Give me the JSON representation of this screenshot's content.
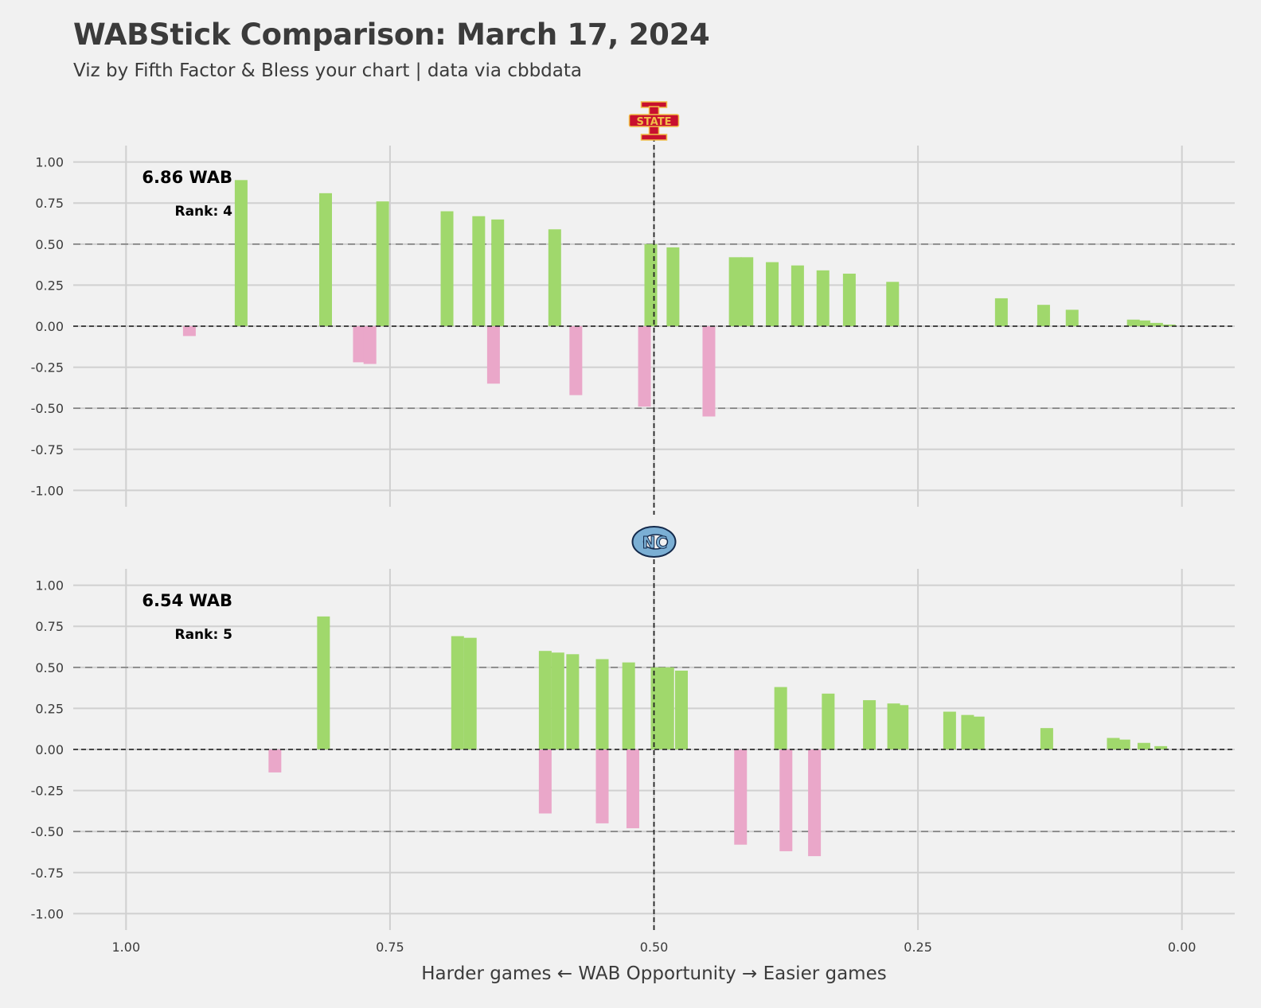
{
  "title": "WABStick Comparison: March 17, 2024",
  "subtitle": "Viz by Fifth Factor & Bless your chart | data via cbbdata",
  "colors": {
    "positive": "#a0d86c",
    "negative": "#eaa7c9",
    "background": "#f1f1f1",
    "grid": "#d0d0d0"
  },
  "chart_data": [
    {
      "type": "bar",
      "team_logo": "iowa-state-logo",
      "logo_text": "STATE",
      "wab_label": "6.86 WAB",
      "rank_label": "Rank: 4",
      "xlabel": "Harder games ← WAB Opportunity → Easier games",
      "xlim": [
        1.05,
        -0.05
      ],
      "ylim": [
        -1.1,
        1.1
      ],
      "x_ticks": [
        1.0,
        0.75,
        0.5,
        0.25,
        0.0
      ],
      "x_tick_labels": [
        "1.00",
        "0.75",
        "0.50",
        "0.25",
        "0.00"
      ],
      "y_ticks": [
        1.0,
        0.75,
        0.5,
        0.25,
        0.0,
        -0.25,
        -0.5,
        -0.75,
        -1.0
      ],
      "y_tick_labels": [
        "1.00",
        "0.75",
        "0.50",
        "0.25",
        "0.00",
        "-0.25",
        "-0.50",
        "-0.75",
        "-1.00"
      ],
      "reference_lines_y": [
        0.5,
        -0.5
      ],
      "reference_line_x": 0.5,
      "points": [
        {
          "x": 0.94,
          "y": -0.06
        },
        {
          "x": 0.891,
          "y": 0.89
        },
        {
          "x": 0.811,
          "y": 0.81
        },
        {
          "x": 0.779,
          "y": -0.22
        },
        {
          "x": 0.769,
          "y": -0.23
        },
        {
          "x": 0.757,
          "y": 0.76
        },
        {
          "x": 0.696,
          "y": 0.7
        },
        {
          "x": 0.666,
          "y": 0.67
        },
        {
          "x": 0.652,
          "y": -0.35
        },
        {
          "x": 0.648,
          "y": 0.65
        },
        {
          "x": 0.594,
          "y": 0.59
        },
        {
          "x": 0.574,
          "y": -0.42
        },
        {
          "x": 0.509,
          "y": -0.49
        },
        {
          "x": 0.503,
          "y": 0.5
        },
        {
          "x": 0.482,
          "y": 0.48
        },
        {
          "x": 0.448,
          "y": -0.55
        },
        {
          "x": 0.423,
          "y": 0.42
        },
        {
          "x": 0.412,
          "y": 0.42
        },
        {
          "x": 0.388,
          "y": 0.39
        },
        {
          "x": 0.364,
          "y": 0.37
        },
        {
          "x": 0.34,
          "y": 0.34
        },
        {
          "x": 0.315,
          "y": 0.32
        },
        {
          "x": 0.274,
          "y": 0.27
        },
        {
          "x": 0.171,
          "y": 0.17
        },
        {
          "x": 0.131,
          "y": 0.13
        },
        {
          "x": 0.104,
          "y": 0.1
        },
        {
          "x": 0.046,
          "y": 0.04
        },
        {
          "x": 0.036,
          "y": 0.035
        },
        {
          "x": 0.024,
          "y": 0.02
        },
        {
          "x": 0.012,
          "y": 0.01
        }
      ]
    },
    {
      "type": "bar",
      "team_logo": "north-carolina-logo",
      "logo_text": "NC",
      "wab_label": "6.54 WAB",
      "rank_label": "Rank: 5",
      "xlabel": "Harder games ← WAB Opportunity → Easier games",
      "xlim": [
        1.05,
        -0.05
      ],
      "ylim": [
        -1.1,
        1.1
      ],
      "x_ticks": [
        1.0,
        0.75,
        0.5,
        0.25,
        0.0
      ],
      "x_tick_labels": [
        "1.00",
        "0.75",
        "0.50",
        "0.25",
        "0.00"
      ],
      "y_ticks": [
        1.0,
        0.75,
        0.5,
        0.25,
        0.0,
        -0.25,
        -0.5,
        -0.75,
        -1.0
      ],
      "y_tick_labels": [
        "1.00",
        "0.75",
        "0.50",
        "0.25",
        "0.00",
        "-0.25",
        "-0.50",
        "-0.75",
        "-1.00"
      ],
      "reference_lines_y": [
        0.5,
        -0.5
      ],
      "reference_line_x": 0.5,
      "points": [
        {
          "x": 0.859,
          "y": -0.14
        },
        {
          "x": 0.813,
          "y": 0.81
        },
        {
          "x": 0.686,
          "y": 0.69
        },
        {
          "x": 0.674,
          "y": 0.68
        },
        {
          "x": 0.603,
          "y": -0.39
        },
        {
          "x": 0.603,
          "y": 0.6
        },
        {
          "x": 0.591,
          "y": 0.59
        },
        {
          "x": 0.577,
          "y": 0.58
        },
        {
          "x": 0.549,
          "y": -0.45
        },
        {
          "x": 0.549,
          "y": 0.55
        },
        {
          "x": 0.52,
          "y": -0.48
        },
        {
          "x": 0.524,
          "y": 0.53
        },
        {
          "x": 0.497,
          "y": 0.5
        },
        {
          "x": 0.487,
          "y": 0.5
        },
        {
          "x": 0.474,
          "y": 0.48
        },
        {
          "x": 0.418,
          "y": -0.58
        },
        {
          "x": 0.38,
          "y": 0.38
        },
        {
          "x": 0.375,
          "y": -0.62
        },
        {
          "x": 0.348,
          "y": -0.65
        },
        {
          "x": 0.335,
          "y": 0.34
        },
        {
          "x": 0.296,
          "y": 0.3
        },
        {
          "x": 0.273,
          "y": 0.28
        },
        {
          "x": 0.265,
          "y": 0.27
        },
        {
          "x": 0.22,
          "y": 0.23
        },
        {
          "x": 0.203,
          "y": 0.21
        },
        {
          "x": 0.193,
          "y": 0.2
        },
        {
          "x": 0.128,
          "y": 0.13
        },
        {
          "x": 0.065,
          "y": 0.07
        },
        {
          "x": 0.055,
          "y": 0.06
        },
        {
          "x": 0.036,
          "y": 0.04
        },
        {
          "x": 0.02,
          "y": 0.02
        }
      ]
    }
  ]
}
